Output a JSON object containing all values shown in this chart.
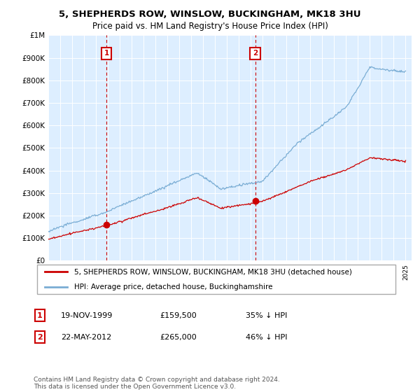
{
  "title": "5, SHEPHERDS ROW, WINSLOW, BUCKINGHAM, MK18 3HU",
  "subtitle": "Price paid vs. HM Land Registry's House Price Index (HPI)",
  "legend_label_red": "5, SHEPHERDS ROW, WINSLOW, BUCKINGHAM, MK18 3HU (detached house)",
  "legend_label_blue": "HPI: Average price, detached house, Buckinghamshire",
  "transaction1_label": "1",
  "transaction1_date": "19-NOV-1999",
  "transaction1_price": "£159,500",
  "transaction1_hpi": "35% ↓ HPI",
  "transaction2_label": "2",
  "transaction2_date": "22-MAY-2012",
  "transaction2_price": "£265,000",
  "transaction2_hpi": "46% ↓ HPI",
  "footnote": "Contains HM Land Registry data © Crown copyright and database right 2024.\nThis data is licensed under the Open Government Licence v3.0.",
  "ylim": [
    0,
    1000000
  ],
  "yticks": [
    0,
    100000,
    200000,
    300000,
    400000,
    500000,
    600000,
    700000,
    800000,
    900000,
    1000000
  ],
  "ytick_labels": [
    "£0",
    "£100K",
    "£200K",
    "£300K",
    "£400K",
    "£500K",
    "£600K",
    "£700K",
    "£800K",
    "£900K",
    "£1M"
  ],
  "x_start_year": 1995,
  "x_end_year": 2025,
  "marker1_year": 1999.88,
  "marker1_value": 159500,
  "marker2_year": 2012.38,
  "marker2_value": 265000,
  "red_color": "#cc0000",
  "blue_color": "#7aadd4",
  "plot_bg_color": "#ddeeff",
  "marker_box_color": "#cc0000",
  "grid_color": "#ffffff",
  "background_color": "#ffffff"
}
